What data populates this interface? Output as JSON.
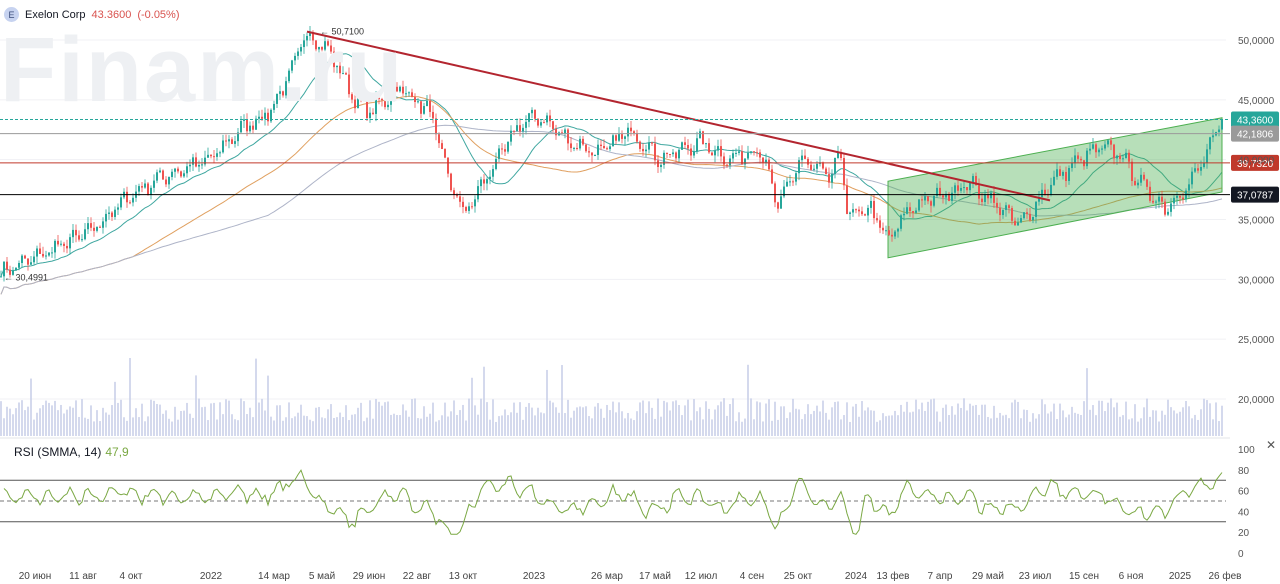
{
  "header": {
    "logo_letter": "E",
    "name": "Exelon Corp",
    "price": "43.3600",
    "change": "(-0.05%)"
  },
  "watermark": "Finam.ru",
  "rsi": {
    "label": "RSI (SMMA, 14)",
    "value": "47,9",
    "ticks": [
      "100",
      "80",
      "60",
      "40",
      "20",
      "0"
    ]
  },
  "colors": {
    "up": "#26a69a",
    "down": "#ef5350",
    "ma_green": "#3fa7a0",
    "ma_orange": "#e0a060",
    "ma_gray": "#aeb4c8",
    "trend": "#b3252f",
    "channel": "#4caf50",
    "rsi_line": "#7aa843"
  },
  "chart_data": {
    "type": "candlestick",
    "y_ticks": [
      "50,0000",
      "45,0000",
      "40,0000",
      "35,0000",
      "30,0000",
      "25,0000",
      "20,0000"
    ],
    "ylim": [
      16.5,
      52.5
    ],
    "x_labels": [
      "20 июн",
      "11 авг",
      "4 окт",
      "2022",
      "14 мар",
      "5 май",
      "29 июн",
      "22 авг",
      "13 окт",
      "2023",
      "26 мар",
      "17 май",
      "12 июл",
      "4 сен",
      "25 окт",
      "2024",
      "13 фев",
      "7 апр",
      "29 май",
      "23 июл",
      "15 сен",
      "6 ноя",
      "2025",
      "26 фев"
    ],
    "price_path": [
      [
        0,
        30.5
      ],
      [
        40,
        32
      ],
      [
        90,
        34
      ],
      [
        130,
        37
      ],
      [
        160,
        38.5
      ],
      [
        210,
        40
      ],
      [
        240,
        42.5
      ],
      [
        270,
        44
      ],
      [
        295,
        48
      ],
      [
        305,
        50.7
      ],
      [
        330,
        49
      ],
      [
        355,
        45
      ],
      [
        370,
        44
      ],
      [
        400,
        46
      ],
      [
        430,
        44
      ],
      [
        450,
        38
      ],
      [
        465,
        35.5
      ],
      [
        490,
        39
      ],
      [
        520,
        43
      ],
      [
        540,
        43.6
      ],
      [
        570,
        41.5
      ],
      [
        600,
        40.5
      ],
      [
        630,
        42.5
      ],
      [
        660,
        40
      ],
      [
        700,
        41.5
      ],
      [
        730,
        40
      ],
      [
        760,
        41
      ],
      [
        778,
        36
      ],
      [
        800,
        40
      ],
      [
        830,
        38.5
      ],
      [
        842,
        40.5
      ],
      [
        848,
        35
      ],
      [
        870,
        36
      ],
      [
        888,
        33.2
      ],
      [
        910,
        36
      ],
      [
        940,
        37
      ],
      [
        970,
        38
      ],
      [
        1000,
        36
      ],
      [
        1020,
        34.5
      ],
      [
        1050,
        38
      ],
      [
        1080,
        40
      ],
      [
        1100,
        41
      ],
      [
        1120,
        40.5
      ],
      [
        1140,
        38
      ],
      [
        1165,
        36
      ],
      [
        1190,
        38
      ],
      [
        1210,
        41
      ],
      [
        1222,
        43.36
      ]
    ],
    "annotations": [
      "50,7100",
      "30,4991"
    ],
    "levels": [
      {
        "label": "43,3600",
        "value": 43.36,
        "style": "last"
      },
      {
        "label": "42,1806",
        "value": 42.18,
        "style": "gray"
      },
      {
        "label": "39,7320",
        "value": 39.73,
        "style": "red"
      },
      {
        "label": "37,0787",
        "value": 37.08,
        "style": "black"
      }
    ],
    "trendline": {
      "from": [
        "5 май",
        50.7
      ],
      "to": [
        "23 июл",
        36.6
      ]
    },
    "channel": {
      "lower": [
        [
          888,
          31.8
        ],
        [
          1222,
          37.3
        ]
      ],
      "upper": [
        [
          888,
          38.2
        ],
        [
          1222,
          43.5
        ]
      ]
    }
  }
}
